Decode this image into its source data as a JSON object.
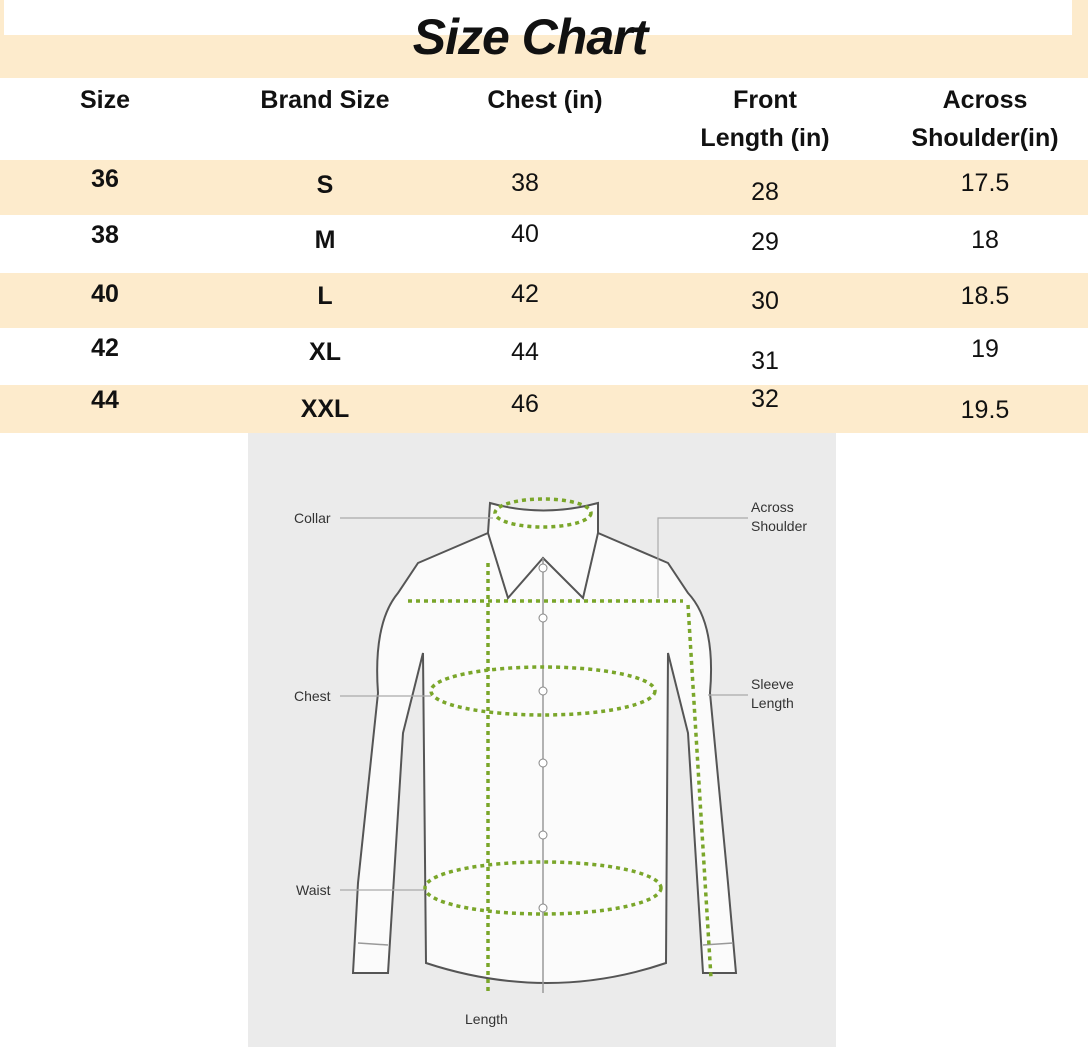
{
  "title": "Size Chart",
  "table": {
    "headers": [
      "Size",
      "Brand Size",
      "Chest (in)",
      "Front Length (in)",
      "Across Shoulder(in)"
    ],
    "header_lines": {
      "front": [
        "Front",
        "Length (in)"
      ],
      "shoulder": [
        "Across",
        "Shoulder(in)"
      ]
    },
    "rows": [
      [
        "36",
        "S",
        "38",
        "28",
        "17.5"
      ],
      [
        "38",
        "M",
        "40",
        "29",
        "18"
      ],
      [
        "40",
        "L",
        "42",
        "30",
        "18.5"
      ],
      [
        "42",
        "XL",
        "44",
        "31",
        "19"
      ],
      [
        "44",
        "XXL",
        "46",
        "32",
        "19.5"
      ]
    ]
  },
  "diagram": {
    "labels": {
      "collar": "Collar",
      "across_shoulder": [
        "Across",
        "Shoulder"
      ],
      "chest": "Chest",
      "sleeve_length": [
        "Sleeve",
        "Length"
      ],
      "waist": "Waist",
      "length": "Length"
    },
    "measure_color": "#7aa62a"
  },
  "colors": {
    "band": "#fdebcc",
    "white": "#ffffff"
  }
}
